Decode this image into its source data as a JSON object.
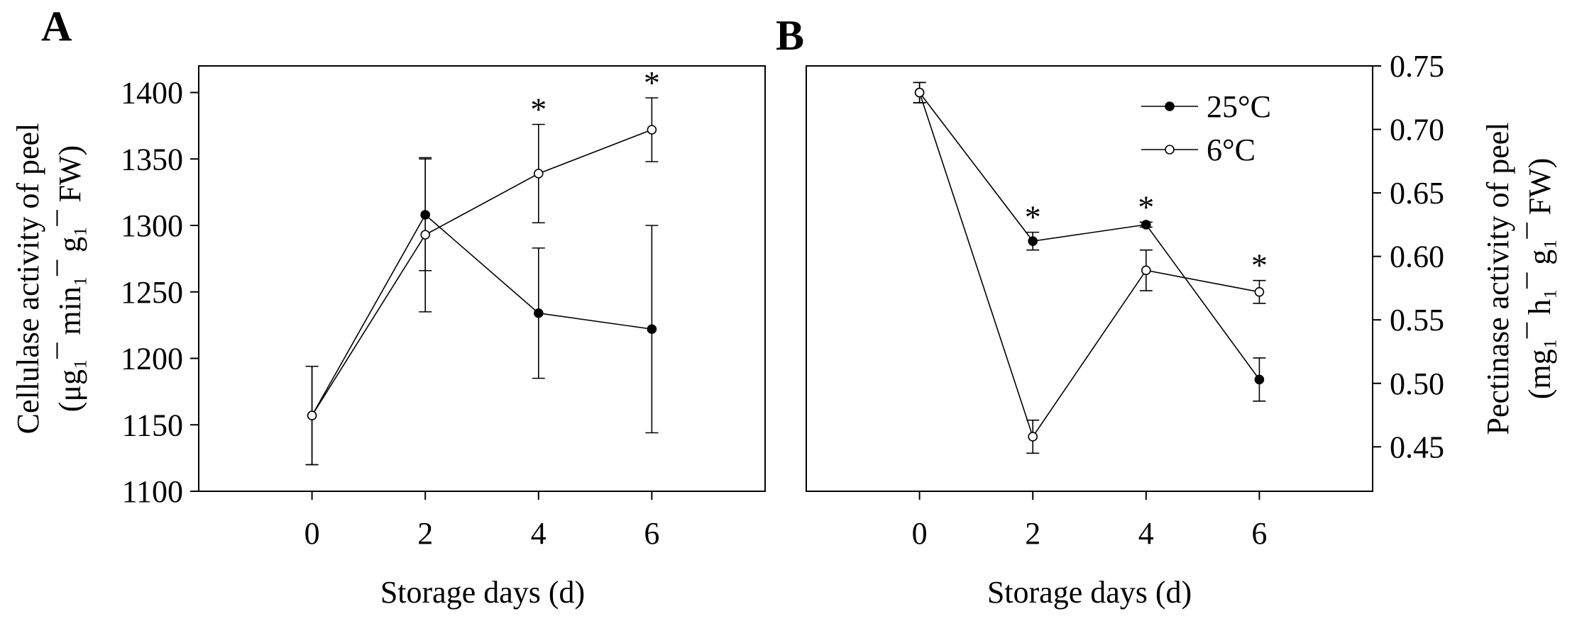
{
  "chart_data": [
    {
      "panel_label": "A",
      "type": "line",
      "x": [
        0,
        2,
        4,
        6
      ],
      "xticks": [
        "0",
        "2",
        "4",
        "6"
      ],
      "xlabel": "Storage days (d)",
      "xlim": [
        -2,
        8
      ],
      "ylabel_line1": "Cellulase activity of peel",
      "ylabel_line2": "(μg₁¯ min₁¯ g₁¯ FW)",
      "ylim": [
        1100,
        1420
      ],
      "yticks": [
        1100,
        1150,
        1200,
        1250,
        1300,
        1350,
        1400
      ],
      "grid": false,
      "series": [
        {
          "name": "25°C",
          "marker": "filled-circle",
          "values": [
            1157,
            1308,
            1234,
            1222
          ],
          "errors": [
            37,
            42,
            49,
            78
          ]
        },
        {
          "name": "6°C",
          "marker": "open-circle",
          "values": [
            1157,
            1293,
            1339,
            1372
          ],
          "errors": [
            37,
            58,
            37,
            24
          ]
        }
      ],
      "significance": [
        {
          "x": 4,
          "label": "*"
        },
        {
          "x": 6,
          "label": "*"
        }
      ]
    },
    {
      "panel_label": "B",
      "type": "line",
      "x": [
        0,
        2,
        4,
        6
      ],
      "xticks": [
        "0",
        "2",
        "4",
        "6"
      ],
      "xlabel": "Storage days (d)",
      "xlim": [
        -2,
        8
      ],
      "ylabel_line1": "Pectinase activity of peel",
      "ylabel_line2": "(mg₁¯ h₁¯ g₁¯ FW)",
      "y_axis_side": "right",
      "ylim": [
        0.415,
        0.75
      ],
      "yticks": [
        "0.45",
        "0.50",
        "0.55",
        "0.60",
        "0.65",
        "0.70",
        "0.75"
      ],
      "grid": false,
      "legend_position": "top-right",
      "series": [
        {
          "name": "25°C",
          "marker": "filled-circle",
          "values": [
            0.729,
            0.612,
            0.625,
            0.503
          ],
          "errors": [
            0.008,
            0.007,
            0.002,
            0.017
          ]
        },
        {
          "name": "6°C",
          "marker": "open-circle",
          "values": [
            0.729,
            0.458,
            0.589,
            0.572
          ],
          "errors": [
            0.008,
            0.013,
            0.016,
            0.009
          ]
        }
      ],
      "significance": [
        {
          "x": 2,
          "label": "*"
        },
        {
          "x": 4,
          "label": "*"
        },
        {
          "x": 6,
          "label": "*"
        }
      ]
    }
  ]
}
